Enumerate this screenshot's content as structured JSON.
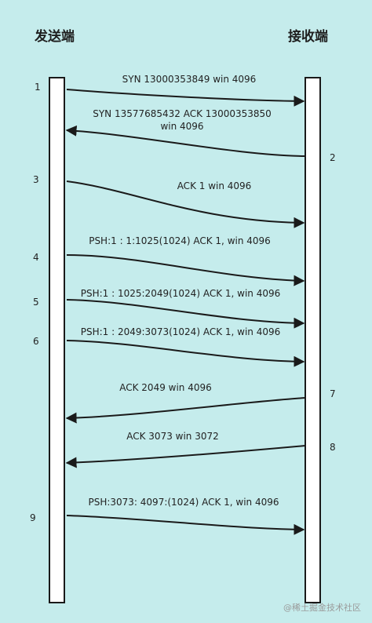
{
  "titles": {
    "sender": "发送端",
    "receiver": "接收端"
  },
  "messages": [
    {
      "num": "1",
      "text": [
        "SYN 13000353849 win 4096"
      ],
      "dir": "right"
    },
    {
      "num": "2",
      "text": [
        "SYN 13577685432 ACK 13000353850",
        "win 4096"
      ],
      "dir": "left"
    },
    {
      "num": "3",
      "text": [
        "ACK 1 win 4096"
      ],
      "dir": "right"
    },
    {
      "num": "4",
      "text": [
        "PSH:1 : 1:1025(1024) ACK 1, win 4096"
      ],
      "dir": "right"
    },
    {
      "num": "5",
      "text": [
        "PSH:1 : 1025:2049(1024) ACK 1, win 4096"
      ],
      "dir": "right"
    },
    {
      "num": "6",
      "text": [
        "PSH:1 : 2049:3073(1024) ACK 1, win 4096"
      ],
      "dir": "right"
    },
    {
      "num": "7",
      "text": [
        "ACK 2049 win 4096"
      ],
      "dir": "left"
    },
    {
      "num": "8",
      "text": [
        "ACK 3073 win 3072"
      ],
      "dir": "left"
    },
    {
      "num": "9",
      "text": [
        "PSH:3073: 4097:(1024) ACK 1, win 4096"
      ],
      "dir": "right"
    }
  ],
  "watermark": "@稀土掘金技术社区",
  "colors": {
    "background": "#c5ecec",
    "line": "#1a1a1a",
    "lifeline_fill": "#ffffff"
  }
}
